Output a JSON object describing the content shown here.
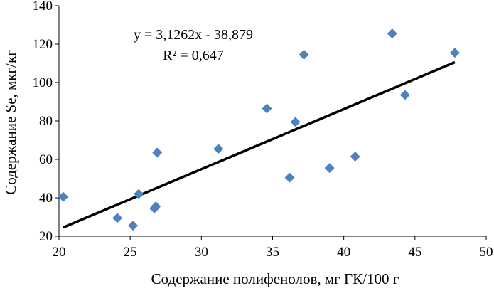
{
  "chart_data": {
    "type": "scatter",
    "xlabel": "Содержание полифенолов, мг ГК/100 г",
    "ylabel": "Содержание Se, мкг/кг",
    "xlim": [
      20,
      50
    ],
    "ylim": [
      20,
      140
    ],
    "x_ticks": [
      "20",
      "25",
      "30",
      "35",
      "40",
      "45",
      "50"
    ],
    "y_ticks": [
      "20",
      "40",
      "60",
      "80",
      "100",
      "120",
      "140"
    ],
    "grid": false,
    "marker": "diamond",
    "marker_color": "#4F81BD",
    "points": [
      {
        "x": 20.3,
        "y": 40.5
      },
      {
        "x": 24.1,
        "y": 29.5
      },
      {
        "x": 25.2,
        "y": 25.5
      },
      {
        "x": 25.6,
        "y": 42.0
      },
      {
        "x": 26.7,
        "y": 34.5
      },
      {
        "x": 26.8,
        "y": 35.5
      },
      {
        "x": 26.9,
        "y": 63.5
      },
      {
        "x": 31.2,
        "y": 65.5
      },
      {
        "x": 34.6,
        "y": 86.5
      },
      {
        "x": 36.2,
        "y": 50.5
      },
      {
        "x": 36.6,
        "y": 79.5
      },
      {
        "x": 37.2,
        "y": 114.5
      },
      {
        "x": 39.0,
        "y": 55.5
      },
      {
        "x": 40.8,
        "y": 61.5
      },
      {
        "x": 43.4,
        "y": 125.5
      },
      {
        "x": 44.3,
        "y": 93.5
      },
      {
        "x": 47.8,
        "y": 115.5
      }
    ],
    "trendline": {
      "type": "linear",
      "slope": 3.1262,
      "intercept": -38.879,
      "x_range": [
        20.3,
        47.8
      ],
      "color": "#000000",
      "equation": "y = 3,1262x - 38,879",
      "r_squared": "R² = 0,647"
    }
  }
}
